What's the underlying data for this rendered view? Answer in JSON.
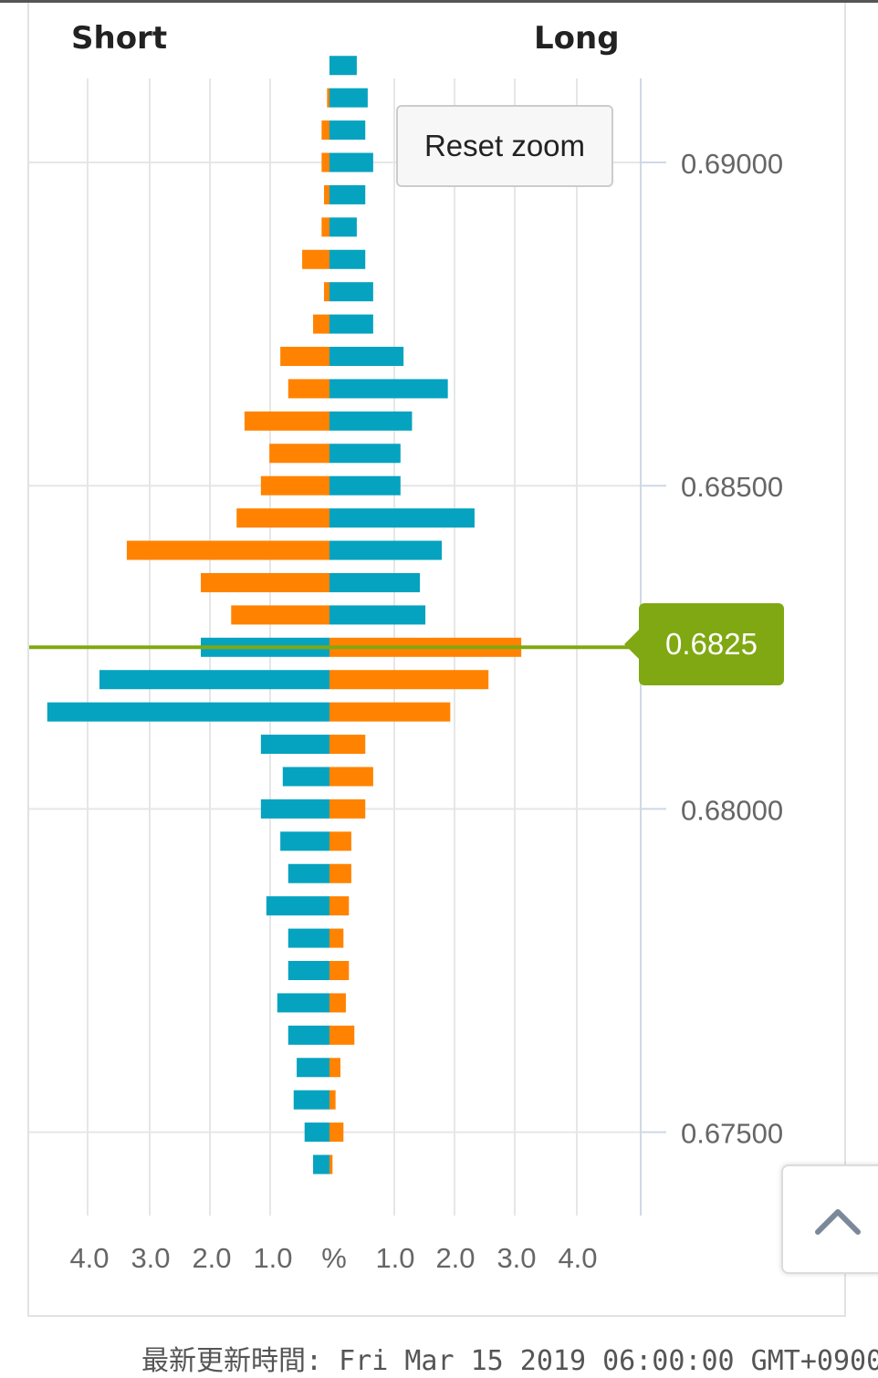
{
  "header": {
    "short_label": "Short",
    "long_label": "Long"
  },
  "reset_zoom_label": "Reset zoom",
  "current_price": {
    "value": 0.6825,
    "label": "0.6825",
    "color": "#80a812"
  },
  "colors": {
    "teal": "#05a3bf",
    "orange": "#ff8300",
    "grid": "#e6e6e6",
    "axis": "#cfd8e6"
  },
  "footer_text": "最新更新時間: Fri Mar 15 2019 06:00:00 GMT+0900",
  "scroll_top_icon": "chevron-up-icon",
  "chart_data": {
    "type": "bar",
    "orientation": "horizontal",
    "price_step": 0.0005,
    "price_top": 0.6915,
    "ylim": [
      0.6738,
      0.6921
    ],
    "y_ticks": [
      0.69,
      0.685,
      0.68,
      0.675
    ],
    "y_tick_labels": [
      "0.69000",
      "0.68500",
      "0.68000",
      "0.67500"
    ],
    "x_tick_labels_left": [
      "4.0",
      "3.0",
      "2.0",
      "1.0"
    ],
    "x_center_label": "%",
    "x_tick_labels_right": [
      "1.0",
      "2.0",
      "3.0",
      "4.0"
    ],
    "series": [
      {
        "side": "long",
        "values": [
          0.45,
          0.63,
          0.59,
          0.72,
          0.59,
          0.45,
          0.59,
          0.72,
          0.72,
          1.22,
          1.95,
          1.36,
          1.17,
          1.17,
          2.39,
          1.85,
          1.49,
          1.58,
          3.16,
          2.62,
          1.99,
          0.59,
          0.72,
          0.59,
          0.36,
          0.36,
          0.32,
          0.23,
          0.32,
          0.27,
          0.41,
          0.18,
          0.1,
          0.23,
          0.05
        ],
        "color_by_row": [
          "teal",
          "teal",
          "teal",
          "teal",
          "teal",
          "teal",
          "teal",
          "teal",
          "teal",
          "teal",
          "teal",
          "teal",
          "teal",
          "teal",
          "teal",
          "teal",
          "teal",
          "teal",
          "orange",
          "orange",
          "orange",
          "orange",
          "orange",
          "orange",
          "orange",
          "orange",
          "orange",
          "orange",
          "orange",
          "orange",
          "orange",
          "orange",
          "orange",
          "orange",
          "orange"
        ]
      },
      {
        "side": "short",
        "values": [
          0,
          0.04,
          0.13,
          0.13,
          0.09,
          0.13,
          0.45,
          0.09,
          0.27,
          0.81,
          0.68,
          1.4,
          0.99,
          1.13,
          1.53,
          3.34,
          2.12,
          1.62,
          2.12,
          3.79,
          4.65,
          1.13,
          0.77,
          1.13,
          0.81,
          0.68,
          1.04,
          0.68,
          0.68,
          0.86,
          0.68,
          0.54,
          0.59,
          0.41,
          0.27
        ],
        "color_by_row": [
          "orange",
          "orange",
          "orange",
          "orange",
          "orange",
          "orange",
          "orange",
          "orange",
          "orange",
          "orange",
          "orange",
          "orange",
          "orange",
          "orange",
          "orange",
          "orange",
          "orange",
          "orange",
          "teal",
          "teal",
          "teal",
          "teal",
          "teal",
          "teal",
          "teal",
          "teal",
          "teal",
          "teal",
          "teal",
          "teal",
          "teal",
          "teal",
          "teal",
          "teal",
          "teal"
        ]
      }
    ]
  }
}
